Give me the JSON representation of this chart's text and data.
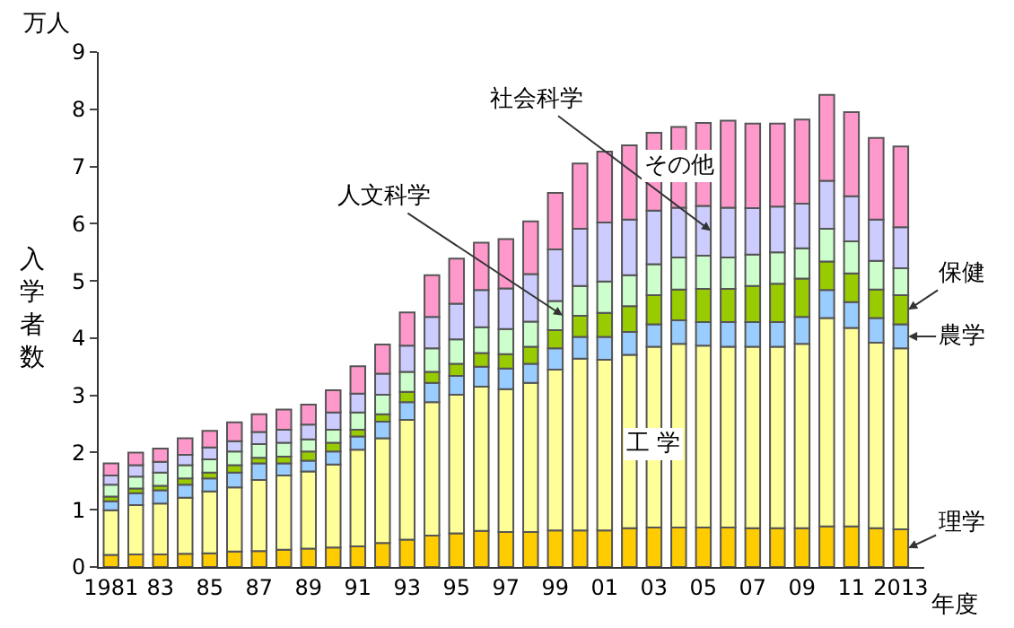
{
  "chart_data": {
    "type": "bar",
    "stacked": true,
    "xlabel": "年度",
    "ylabel": "入学者数",
    "annotations": [
      "万人"
    ],
    "categories": [
      "1981",
      null,
      "83",
      null,
      "85",
      null,
      "87",
      null,
      "89",
      null,
      "91",
      null,
      "93",
      null,
      "95",
      null,
      "97",
      null,
      "99",
      null,
      "01",
      null,
      "03",
      null,
      "05",
      null,
      "07",
      null,
      "09",
      null,
      "11",
      null,
      "2013"
    ],
    "series": [
      {
        "name": "理学",
        "color": "#ffcc00",
        "values": [
          0.21,
          0.22,
          0.22,
          0.23,
          0.24,
          0.27,
          0.28,
          0.3,
          0.32,
          0.34,
          0.36,
          0.42,
          0.48,
          0.55,
          0.59,
          0.63,
          0.61,
          0.61,
          0.64,
          0.64,
          0.64,
          0.68,
          0.69,
          0.69,
          0.69,
          0.69,
          0.68,
          0.68,
          0.68,
          0.71,
          0.71,
          0.68,
          0.66
        ]
      },
      {
        "name": "工 学",
        "color": "#ffff99",
        "values": [
          0.78,
          0.86,
          0.89,
          0.98,
          1.08,
          1.12,
          1.24,
          1.3,
          1.35,
          1.45,
          1.69,
          1.83,
          2.09,
          2.33,
          2.42,
          2.52,
          2.5,
          2.61,
          2.81,
          3.0,
          2.98,
          3.03,
          3.16,
          3.21,
          3.18,
          3.16,
          3.17,
          3.17,
          3.22,
          3.64,
          3.47,
          3.24,
          3.16
        ]
      },
      {
        "name": "農学",
        "color": "#99ccff",
        "values": [
          0.16,
          0.21,
          0.23,
          0.23,
          0.23,
          0.26,
          0.29,
          0.21,
          0.19,
          0.23,
          0.23,
          0.29,
          0.31,
          0.34,
          0.33,
          0.35,
          0.36,
          0.33,
          0.37,
          0.38,
          0.4,
          0.4,
          0.39,
          0.41,
          0.41,
          0.43,
          0.43,
          0.43,
          0.47,
          0.49,
          0.45,
          0.43,
          0.42
        ]
      },
      {
        "name": "保健",
        "color": "#99cc00",
        "values": [
          0.08,
          0.08,
          0.08,
          0.11,
          0.1,
          0.13,
          0.1,
          0.12,
          0.16,
          0.15,
          0.12,
          0.13,
          0.18,
          0.19,
          0.21,
          0.24,
          0.25,
          0.3,
          0.32,
          0.37,
          0.42,
          0.45,
          0.51,
          0.54,
          0.58,
          0.58,
          0.63,
          0.67,
          0.67,
          0.5,
          0.5,
          0.5,
          0.51
        ]
      },
      {
        "name": "人文科学",
        "color": "#ccffcc",
        "values": [
          0.21,
          0.21,
          0.23,
          0.23,
          0.23,
          0.24,
          0.24,
          0.24,
          0.21,
          0.23,
          0.3,
          0.34,
          0.35,
          0.41,
          0.43,
          0.45,
          0.44,
          0.44,
          0.51,
          0.52,
          0.55,
          0.54,
          0.54,
          0.56,
          0.58,
          0.55,
          0.55,
          0.55,
          0.53,
          0.57,
          0.56,
          0.5,
          0.47
        ]
      },
      {
        "name": "社会科学",
        "color": "#ccccff",
        "values": [
          0.16,
          0.2,
          0.19,
          0.18,
          0.21,
          0.18,
          0.21,
          0.23,
          0.26,
          0.3,
          0.33,
          0.37,
          0.46,
          0.55,
          0.62,
          0.65,
          0.71,
          0.83,
          0.9,
          1.0,
          1.03,
          0.97,
          0.94,
          0.87,
          0.87,
          0.87,
          0.81,
          0.8,
          0.78,
          0.84,
          0.79,
          0.72,
          0.72
        ]
      },
      {
        "name": "その他",
        "color": "#ff99cc",
        "values": [
          0.21,
          0.22,
          0.23,
          0.29,
          0.29,
          0.33,
          0.31,
          0.35,
          0.35,
          0.39,
          0.48,
          0.51,
          0.58,
          0.73,
          0.79,
          0.83,
          0.86,
          0.92,
          0.99,
          1.14,
          1.24,
          1.3,
          1.36,
          1.41,
          1.45,
          1.52,
          1.48,
          1.45,
          1.47,
          1.5,
          1.47,
          1.43,
          1.41
        ]
      }
    ],
    "ylim": [
      0,
      9
    ],
    "yticks": [
      0,
      1,
      2,
      3,
      4,
      5,
      6,
      7,
      8,
      9
    ],
    "legend": false
  }
}
